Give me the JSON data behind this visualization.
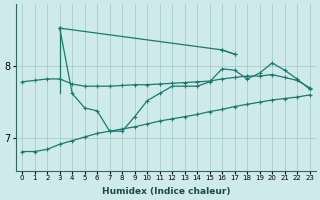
{
  "xlabel": "Humidex (Indice chaleur)",
  "background_color": "#ceeaea",
  "grid_color": "#aacccc",
  "line_color": "#1a7a6e",
  "x_values": [
    0,
    1,
    2,
    3,
    4,
    5,
    6,
    7,
    8,
    9,
    10,
    11,
    12,
    13,
    14,
    15,
    16,
    17,
    18,
    19,
    20,
    21,
    22,
    23
  ],
  "series_bottom": [
    6.82,
    6.82,
    6.85,
    6.92,
    6.97,
    7.02,
    7.07,
    7.1,
    7.13,
    7.16,
    7.2,
    7.24,
    7.27,
    7.3,
    7.33,
    7.37,
    7.4,
    7.44,
    7.47,
    7.5,
    7.53,
    7.55,
    7.57,
    7.6
  ],
  "series_flat": [
    7.78,
    7.8,
    7.82,
    7.82,
    7.75,
    7.72,
    7.72,
    7.72,
    7.73,
    7.74,
    7.74,
    7.75,
    7.76,
    7.77,
    7.78,
    7.79,
    7.82,
    7.84,
    7.86,
    7.86,
    7.88,
    7.84,
    7.8,
    7.7
  ],
  "series_zigzag": [
    null,
    null,
    null,
    8.52,
    7.62,
    7.42,
    7.38,
    7.1,
    7.1,
    7.3,
    7.52,
    7.62,
    7.72,
    7.72,
    7.72,
    7.78,
    7.96,
    7.94,
    7.82,
    7.9,
    8.04,
    7.94,
    7.82,
    7.68
  ],
  "series_topline": [
    null,
    null,
    null,
    8.52,
    null,
    null,
    null,
    null,
    null,
    null,
    null,
    null,
    null,
    null,
    null,
    null,
    8.22,
    8.16,
    null,
    null,
    null,
    null,
    null,
    null
  ],
  "ylim": [
    6.55,
    8.85
  ],
  "yticks": [
    7,
    8
  ],
  "xlim": [
    -0.5,
    23.5
  ]
}
